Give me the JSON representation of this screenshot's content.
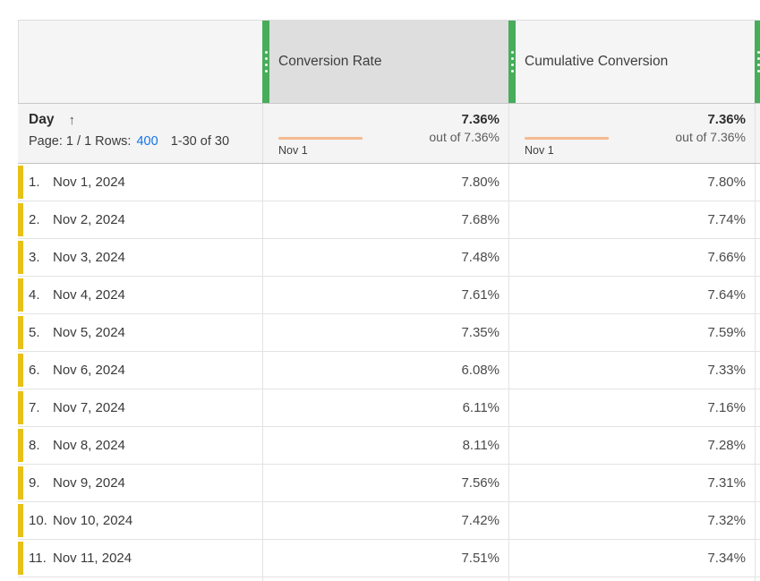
{
  "header": {
    "columns": [
      {
        "label": "Conversion Rate",
        "selected": true
      },
      {
        "label": "Cumulative Conversion",
        "selected": false
      }
    ]
  },
  "summary": {
    "dimension": "Day",
    "sort_arrow": "↑",
    "pagination": {
      "page_text": "Page: 1 / 1 Rows:",
      "rows": "400",
      "range": "1-30 of 30"
    },
    "metrics": [
      {
        "value": "7.36%",
        "out_of": "out of 7.36%",
        "spark_label": "Nov 1"
      },
      {
        "value": "7.36%",
        "out_of": "out of 7.36%",
        "spark_label": "Nov 1"
      }
    ]
  },
  "rows": [
    {
      "num": "1.",
      "date": "Nov 1, 2024",
      "cr": "7.80%",
      "cc": "7.80%"
    },
    {
      "num": "2.",
      "date": "Nov 2, 2024",
      "cr": "7.68%",
      "cc": "7.74%"
    },
    {
      "num": "3.",
      "date": "Nov 3, 2024",
      "cr": "7.48%",
      "cc": "7.66%"
    },
    {
      "num": "4.",
      "date": "Nov 4, 2024",
      "cr": "7.61%",
      "cc": "7.64%"
    },
    {
      "num": "5.",
      "date": "Nov 5, 2024",
      "cr": "7.35%",
      "cc": "7.59%"
    },
    {
      "num": "6.",
      "date": "Nov 6, 2024",
      "cr": "6.08%",
      "cc": "7.33%"
    },
    {
      "num": "7.",
      "date": "Nov 7, 2024",
      "cr": "6.11%",
      "cc": "7.16%"
    },
    {
      "num": "8.",
      "date": "Nov 8, 2024",
      "cr": "8.11%",
      "cc": "7.28%"
    },
    {
      "num": "9.",
      "date": "Nov 9, 2024",
      "cr": "7.56%",
      "cc": "7.31%"
    },
    {
      "num": "10.",
      "date": "Nov 10, 2024",
      "cr": "7.42%",
      "cc": "7.32%"
    },
    {
      "num": "11.",
      "date": "Nov 11, 2024",
      "cr": "7.51%",
      "cc": "7.34%"
    }
  ],
  "colors": {
    "drag_handle_green": "#47AD5A",
    "row_marker_yellow": "#E7C117",
    "sparkline_orange": "#F4BA90",
    "link_blue": "#1473E6",
    "selected_header_bg": "#DEDEDE",
    "header_bg": "#F5F5F5"
  }
}
